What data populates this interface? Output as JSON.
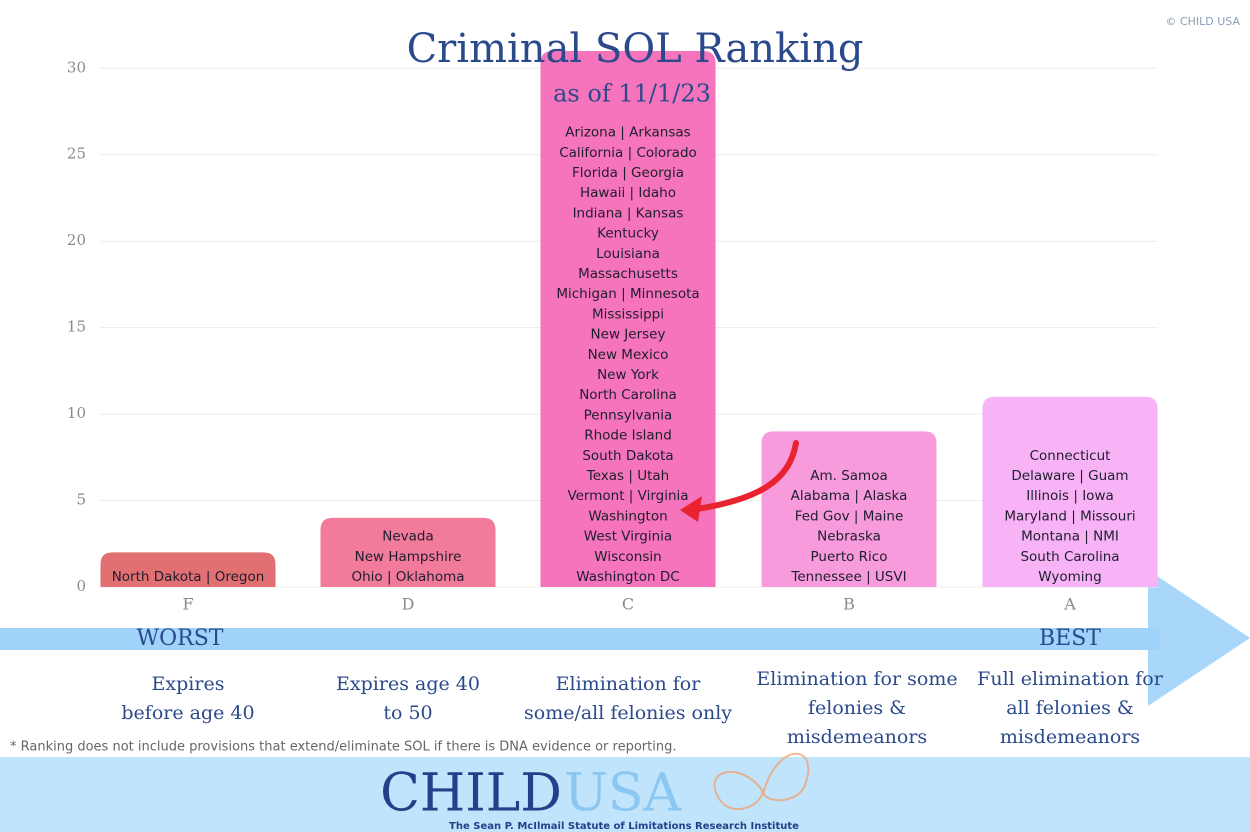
{
  "chart_data": {
    "type": "bar",
    "title": "Criminal SOL Ranking",
    "subtitle": "as of 11/1/23",
    "credit": "© CHILD USA",
    "categories": [
      "F",
      "D",
      "C",
      "B",
      "A"
    ],
    "values": [
      2,
      4,
      31,
      9,
      11
    ],
    "colors": [
      "#e26f72",
      "#f27a9b",
      "#f674bb",
      "#f89bdc",
      "#f8b3f6"
    ],
    "bar_labels": [
      [
        "North Dakota | Oregon"
      ],
      [
        "Nevada",
        "New Hampshire",
        "Ohio  |  Oklahoma"
      ],
      [
        "Arizona  |  Arkansas",
        "California  | Colorado",
        "Florida  |  Georgia",
        "Hawaii  |  Idaho",
        "Indiana  |  Kansas",
        "Kentucky",
        "Louisiana",
        "Massachusetts",
        "Michigan  |  Minnesota",
        "Mississippi",
        "New Jersey",
        "New Mexico",
        "New York",
        "North Carolina",
        "Pennsylvania",
        "Rhode Island",
        "South Dakota",
        "Texas  |  Utah",
        "Vermont  |  Virginia",
        "Washington",
        "West Virginia",
        "Wisconsin",
        "Washington DC"
      ],
      [
        "Am. Samoa",
        "Alabama  |  Alaska",
        "Fed Gov  |  Maine",
        "Nebraska",
        "Puerto Rico",
        "Tennessee | USVI"
      ],
      [
        "Connecticut",
        "Delaware  |  Guam",
        "Illinois  |  Iowa",
        "Maryland  | Missouri",
        "Montana  | NMI",
        "South Carolina",
        "Wyoming"
      ]
    ],
    "ylim": [
      0,
      31
    ],
    "yticks": [
      0,
      5,
      10,
      15,
      20,
      25,
      30
    ],
    "grid": true,
    "scale_ends": {
      "left": "WORST",
      "right": "BEST"
    },
    "descriptions": [
      [
        "Expires",
        "before age 40"
      ],
      [
        "Expires age 40",
        "to 50"
      ],
      [
        "Elimination for",
        "some/all felonies only"
      ],
      [
        "Elimination for some",
        "felonies &",
        "misdemeanors"
      ],
      [
        "Full elimination for",
        "all felonies &",
        "misdemeanors"
      ]
    ],
    "footnote": "* Ranking does not include provisions that extend/eliminate SOL if there is DNA evidence or reporting."
  },
  "logo": {
    "name_1": "CHILD",
    "name_2": "USA",
    "tagline": "The Sean P. McIlmail Statute of Limitations Research Institute"
  }
}
